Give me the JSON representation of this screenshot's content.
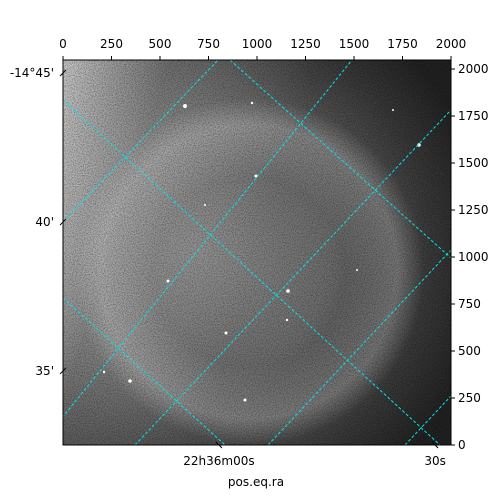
{
  "chart_data": {
    "type": "image",
    "xlabel": "pos.eq.ra",
    "xlim": [
      0,
      2000
    ],
    "ylim": [
      0,
      2048
    ],
    "xticks": [
      0,
      250,
      500,
      750,
      1000,
      1250,
      1500,
      1750,
      2000
    ],
    "yticks": [
      0,
      250,
      500,
      750,
      1000,
      1250,
      1500,
      1750,
      2000
    ],
    "ra_ticks": [
      {
        "value": 804,
        "label": "22h36m00s"
      },
      {
        "value": 1918,
        "label": "30s"
      }
    ],
    "dec_ticks": [
      {
        "value": 1979,
        "label": "-14°45'"
      },
      {
        "value": 1186,
        "label": "40'"
      },
      {
        "value": 394,
        "label": "35'"
      }
    ],
    "grid_color": "#00e5e5"
  }
}
